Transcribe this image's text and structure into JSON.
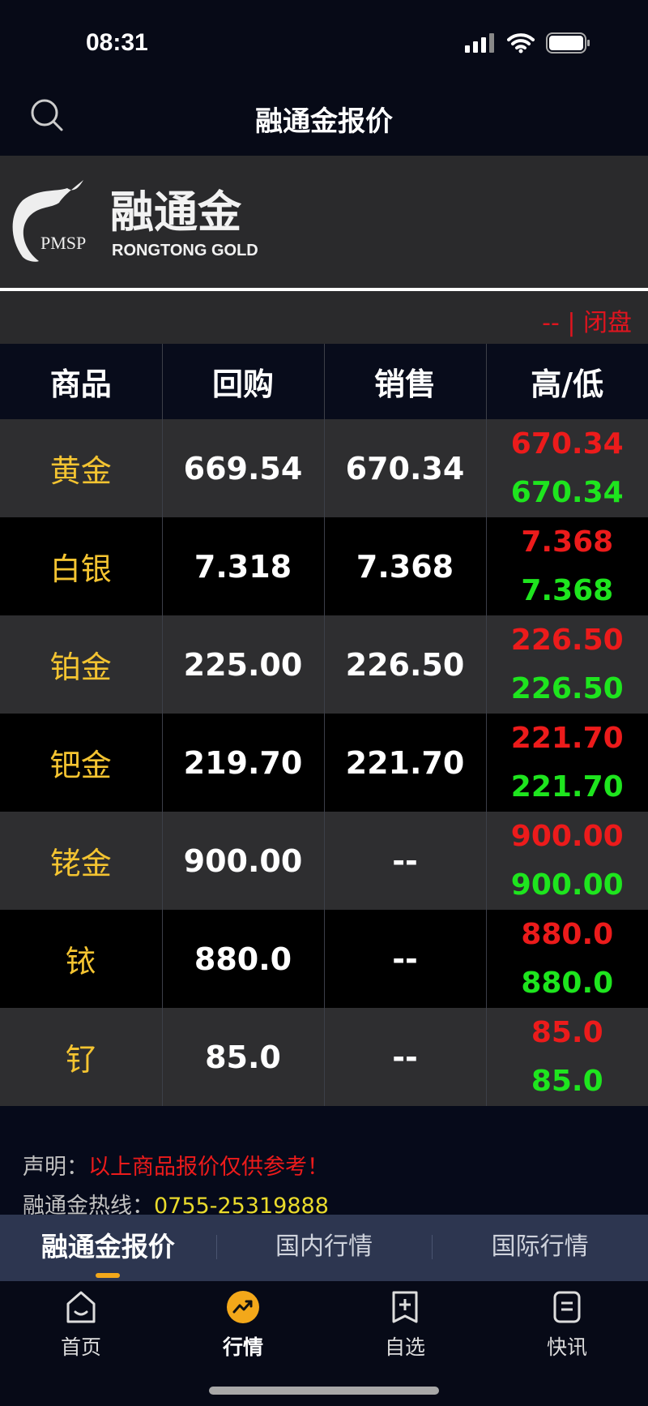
{
  "status_bar": {
    "time": "08:31"
  },
  "nav": {
    "title": "融通金报价",
    "search_icon": "search-icon"
  },
  "banner": {
    "logo_mark": "PMSP",
    "logo_cn": "融通金",
    "logo_en": "RONGTONG GOLD"
  },
  "market_status": "-- | 闭盘",
  "table": {
    "headers": [
      "商品",
      "回购",
      "销售",
      "高/低"
    ],
    "rows": [
      {
        "name": "黄金",
        "buy": "669.54",
        "sell": "670.34",
        "high": "670.34",
        "low": "670.34"
      },
      {
        "name": "白银",
        "buy": "7.318",
        "sell": "7.368",
        "high": "7.368",
        "low": "7.368"
      },
      {
        "name": "铂金",
        "buy": "225.00",
        "sell": "226.50",
        "high": "226.50",
        "low": "226.50"
      },
      {
        "name": "钯金",
        "buy": "219.70",
        "sell": "221.70",
        "high": "221.70",
        "low": "221.70"
      },
      {
        "name": "铑金",
        "buy": "900.00",
        "sell": "--",
        "high": "900.00",
        "low": "900.00"
      },
      {
        "name": "铱",
        "buy": "880.0",
        "sell": "--",
        "high": "880.0",
        "low": "880.0"
      },
      {
        "name": "钌",
        "buy": "85.0",
        "sell": "--",
        "high": "85.0",
        "low": "85.0"
      }
    ]
  },
  "footer": {
    "disclaimer_label": "声明：",
    "disclaimer": "以上商品报价仅供参考！",
    "hotline_label": "融通金热线：",
    "hotline": "0755-25319888"
  },
  "tabs": [
    {
      "label": "融通金报价",
      "active": true
    },
    {
      "label": "国内行情"
    },
    {
      "label": "国际行情"
    }
  ],
  "bottom_nav": [
    {
      "label": "首页",
      "icon": "home-icon"
    },
    {
      "label": "行情",
      "icon": "trend-icon",
      "active": true
    },
    {
      "label": "自选",
      "icon": "bookmark-add-icon"
    },
    {
      "label": "快讯",
      "icon": "news-icon"
    }
  ],
  "colors": {
    "high": "#ec1b1b",
    "low": "#1ee51e",
    "name": "#f4c431",
    "accent": "#f3a81a"
  }
}
